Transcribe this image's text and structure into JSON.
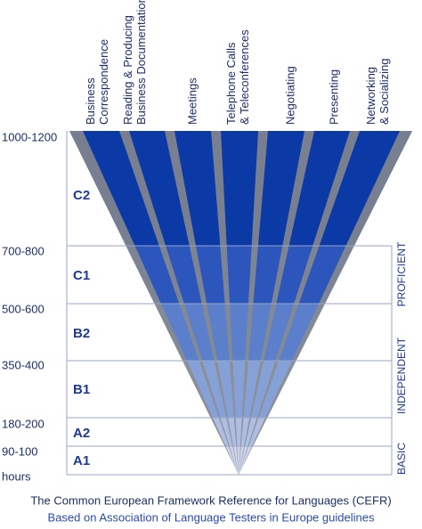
{
  "columns": [
    {
      "lines": [
        "Business",
        "Correspondence"
      ]
    },
    {
      "lines": [
        "Reading & Producing",
        "Business Documentation"
      ]
    },
    {
      "lines": [
        "Meetings"
      ]
    },
    {
      "lines": [
        "Telephone Calls",
        "& Teleconferences"
      ]
    },
    {
      "lines": [
        "Negotiating"
      ]
    },
    {
      "lines": [
        "Presenting"
      ]
    },
    {
      "lines": [
        "Networking",
        "& Socializing"
      ]
    }
  ],
  "levels": [
    {
      "hours": "1000-1200",
      "label": "C2"
    },
    {
      "hours": "700-800",
      "label": "C1"
    },
    {
      "hours": "500-600",
      "label": "B2"
    },
    {
      "hours": "350-400",
      "label": "B1"
    },
    {
      "hours": "180-200",
      "label": "A2"
    },
    {
      "hours": "90-100",
      "label": "A1"
    }
  ],
  "hours_unit": "hours",
  "bands": [
    "PROFICIENT",
    "INDEPENDENT",
    "BASIC"
  ],
  "caption": {
    "title": "The Common European Framework Reference for Languages (CEFR)",
    "subtitle": "Based on Association of Language Testers in Europe guidelines"
  }
}
